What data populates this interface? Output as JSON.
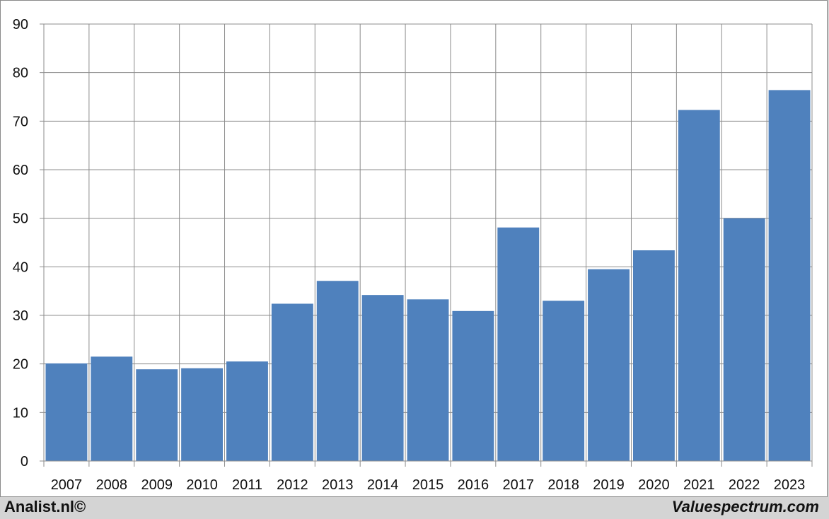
{
  "chart_data": {
    "type": "bar",
    "categories": [
      "2007",
      "2008",
      "2009",
      "2010",
      "2011",
      "2012",
      "2013",
      "2014",
      "2015",
      "2016",
      "2017",
      "2018",
      "2019",
      "2020",
      "2021",
      "2022",
      "2023"
    ],
    "values": [
      20.1,
      21.5,
      18.9,
      19.1,
      20.5,
      32.4,
      37.1,
      34.2,
      33.3,
      30.9,
      48.1,
      33.0,
      39.5,
      43.4,
      72.3,
      50.0,
      76.4
    ],
    "ylim": [
      0,
      90
    ],
    "yticks": [
      0,
      10,
      20,
      30,
      40,
      50,
      60,
      70,
      80,
      90
    ],
    "grid": true,
    "bar_color": "#4f81bd",
    "title": "",
    "xlabel": "",
    "ylabel": ""
  },
  "footer": {
    "left_text": "Analist.nl©",
    "right_text": "Valuespectrum.com"
  }
}
